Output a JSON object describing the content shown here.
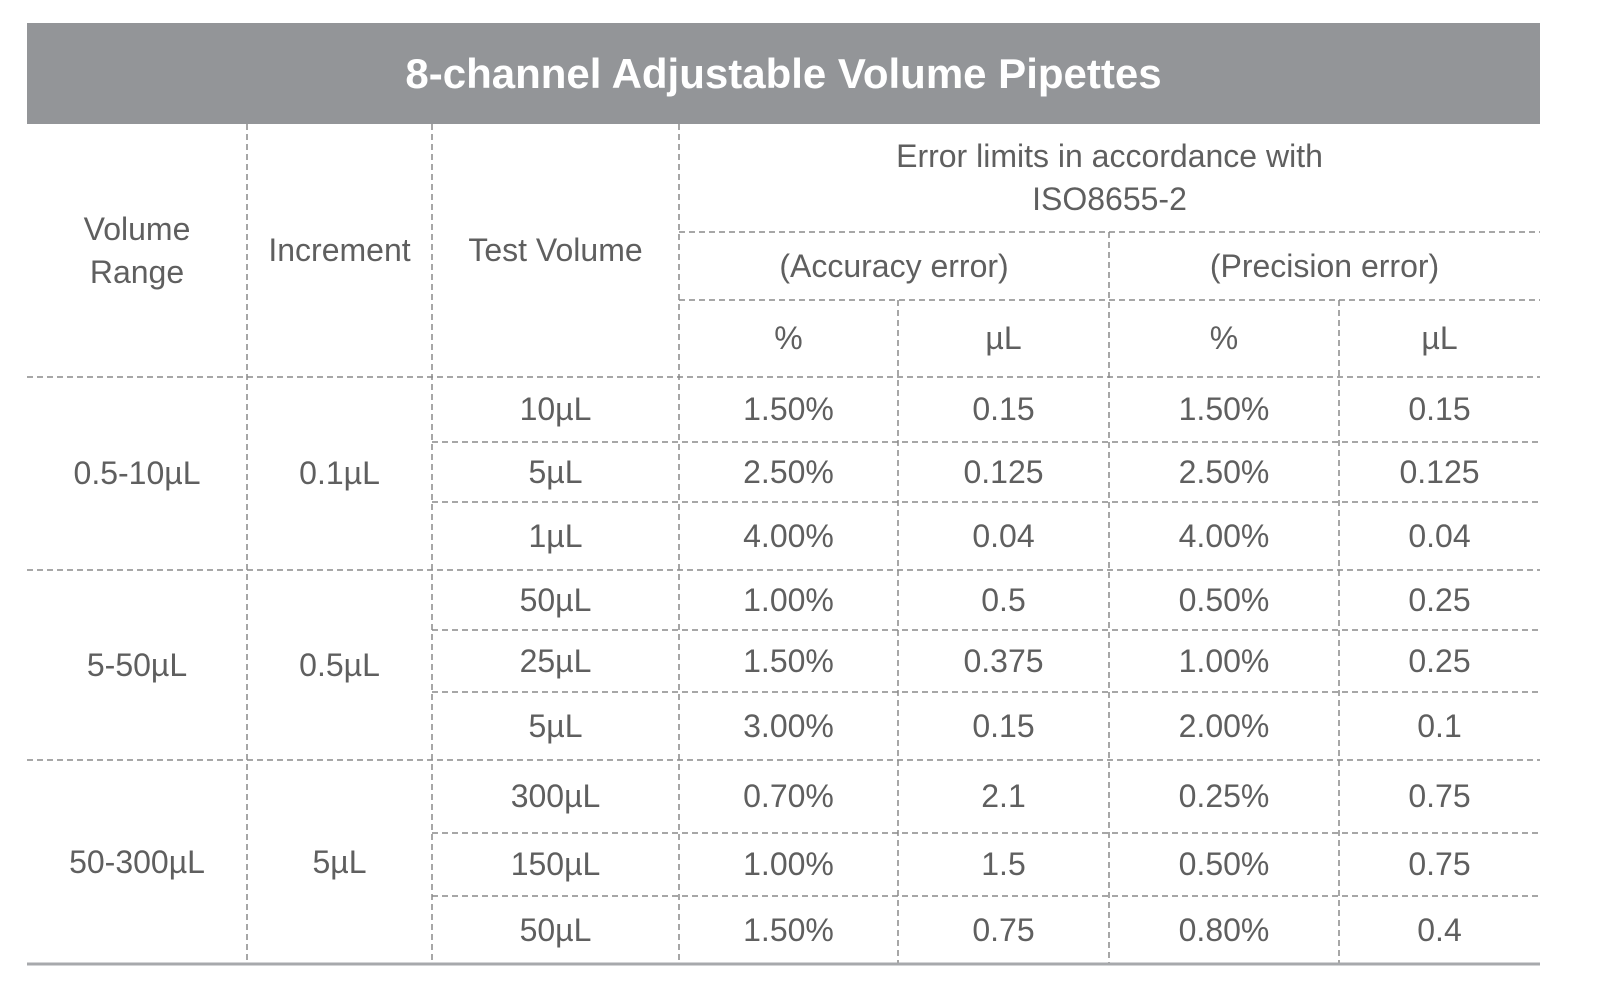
{
  "title": "8-channel Adjustable Volume Pipettes",
  "header": {
    "volume_range": "Volume Range",
    "increment": "Increment",
    "test_volume": "Test Volume",
    "error_limits": "Error limits in accordance with ISO8655-2",
    "accuracy": "(Accuracy error)",
    "precision": "(Precision error)",
    "units": [
      "%",
      "µL",
      "%",
      "µL"
    ]
  },
  "groups": [
    {
      "range": "0.5-10µL",
      "increment": "0.1µL",
      "rows": [
        [
          "10µL",
          "1.50%",
          "0.15",
          "1.50%",
          "0.15"
        ],
        [
          "5µL",
          "2.50%",
          "0.125",
          "2.50%",
          "0.125"
        ],
        [
          "1µL",
          "4.00%",
          "0.04",
          "4.00%",
          "0.04"
        ]
      ]
    },
    {
      "range": "5-50µL",
      "increment": "0.5µL",
      "rows": [
        [
          "50µL",
          "1.00%",
          "0.5",
          "0.50%",
          "0.25"
        ],
        [
          "25µL",
          "1.50%",
          "0.375",
          "1.00%",
          "0.25"
        ],
        [
          "5µL",
          "3.00%",
          "0.15",
          "2.00%",
          "0.1"
        ]
      ]
    },
    {
      "range": "50-300µL",
      "increment": "5µL",
      "rows": [
        [
          "300µL",
          "0.70%",
          "2.1",
          "0.25%",
          "0.75"
        ],
        [
          "150µL",
          "1.00%",
          "1.5",
          "0.50%",
          "0.75"
        ],
        [
          "50µL",
          "1.50%",
          "0.75",
          "0.80%",
          "0.4"
        ]
      ]
    }
  ]
}
